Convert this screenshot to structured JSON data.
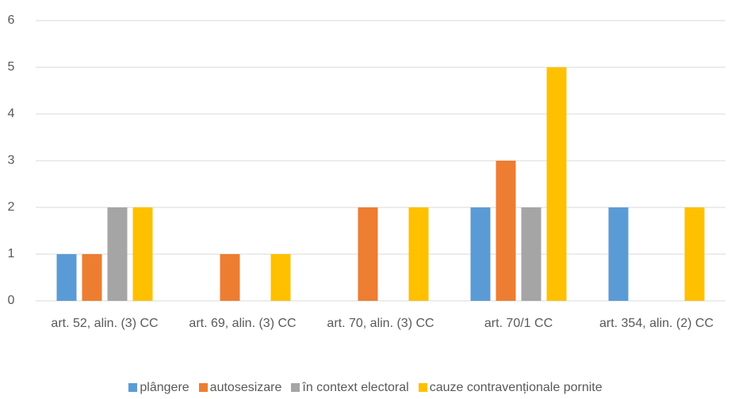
{
  "chart_data": {
    "type": "bar",
    "categories": [
      "art. 52, alin. (3) CC",
      "art. 69, alin. (3) CC",
      "art. 70, alin. (3) CC",
      "art. 70/1 CC",
      "art. 354, alin. (2) CC"
    ],
    "series": [
      {
        "name": "plângere",
        "color": "#5b9bd5",
        "values": [
          1,
          0,
          0,
          2,
          2
        ]
      },
      {
        "name": "autosesizare",
        "color": "#ed7d31",
        "values": [
          1,
          1,
          2,
          3,
          0
        ]
      },
      {
        "name": "în context electoral",
        "color": "#a5a5a5",
        "values": [
          2,
          0,
          0,
          2,
          0
        ]
      },
      {
        "name": "cauze contravenționale pornite",
        "color": "#ffc000",
        "values": [
          2,
          1,
          2,
          5,
          2
        ]
      }
    ],
    "ylim": [
      0,
      6
    ],
    "yticks": [
      0,
      1,
      2,
      3,
      4,
      5,
      6
    ],
    "grid": true,
    "legend": "bottom"
  }
}
